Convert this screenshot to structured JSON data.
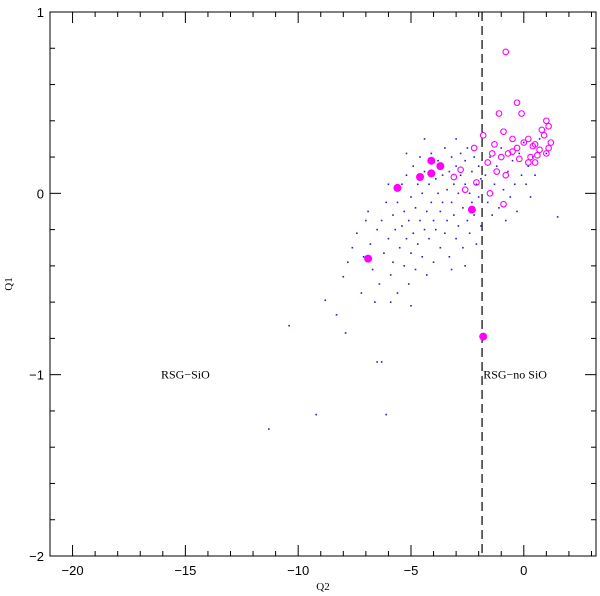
{
  "chart_data": {
    "type": "scatter",
    "xlabel": "Q2",
    "ylabel": "Q1",
    "xlim": [
      -21,
      3.2
    ],
    "ylim": [
      -2,
      1
    ],
    "x_ticks": [
      -20,
      -15,
      -10,
      -5,
      0
    ],
    "x_tick_labels": [
      "−20",
      "−15",
      "−10",
      "−5",
      "0"
    ],
    "y_ticks": [
      -2,
      -1,
      0,
      1
    ],
    "y_tick_labels": [
      "−2",
      "−1",
      "0",
      "1"
    ],
    "x_minor_step": 1,
    "y_minor_step": 0.2,
    "threshold_x": -1.85,
    "annotations": [
      {
        "text": "RSG−SiO",
        "x": -15.0,
        "y": -1.0
      },
      {
        "text": "RSG−no SiO",
        "x": -1.8,
        "y": -1.0
      }
    ],
    "colors": {
      "blue_points": "#1f1fd6",
      "magenta": "#ff00ff",
      "dashed_line": "#000000"
    },
    "series": [
      {
        "marker": "small-blue-dot",
        "points": [
          [
            -11.3,
            -1.3
          ],
          [
            -10.4,
            -0.73
          ],
          [
            -9.2,
            -1.22
          ],
          [
            -8.8,
            -0.59
          ],
          [
            -8.3,
            -0.67
          ],
          [
            -8.0,
            -0.46
          ],
          [
            -7.8,
            -0.38
          ],
          [
            -7.6,
            -0.3
          ],
          [
            -7.9,
            -0.77
          ],
          [
            -7.2,
            -0.55
          ],
          [
            -6.5,
            -0.93
          ],
          [
            -6.3,
            -0.93
          ],
          [
            -6.1,
            -1.22
          ],
          [
            -7.4,
            -0.22
          ],
          [
            -7.1,
            -0.35
          ],
          [
            -6.9,
            -0.1
          ],
          [
            -6.8,
            -0.28
          ],
          [
            -6.7,
            -0.42
          ],
          [
            -6.5,
            -0.2
          ],
          [
            -6.4,
            -0.5
          ],
          [
            -6.3,
            -0.15
          ],
          [
            -6.2,
            -0.33
          ],
          [
            -6.1,
            -0.05
          ],
          [
            -6.0,
            -0.25
          ],
          [
            -5.9,
            -0.45
          ],
          [
            -5.8,
            -0.12
          ],
          [
            -5.8,
            -0.38
          ],
          [
            -5.7,
            -0.2
          ],
          [
            -5.6,
            -0.55
          ],
          [
            -5.6,
            -0.05
          ],
          [
            -5.5,
            -0.3
          ],
          [
            -5.4,
            -0.18
          ],
          [
            -5.4,
            0.05
          ],
          [
            -5.3,
            -0.4
          ],
          [
            -5.3,
            -0.1
          ],
          [
            -5.2,
            -0.25
          ],
          [
            -5.2,
            0.1
          ],
          [
            -5.1,
            -0.5
          ],
          [
            -5.1,
            -0.15
          ],
          [
            -5.0,
            -0.02
          ],
          [
            -5.0,
            -0.33
          ],
          [
            -4.9,
            0.15
          ],
          [
            -4.9,
            -0.22
          ],
          [
            -4.8,
            -0.08
          ],
          [
            -4.8,
            -0.42
          ],
          [
            -4.7,
            0.05
          ],
          [
            -4.7,
            -0.28
          ],
          [
            -4.6,
            -0.15
          ],
          [
            -4.6,
            0.2
          ],
          [
            -4.5,
            -0.35
          ],
          [
            -4.5,
            0.0
          ],
          [
            -4.4,
            -0.2
          ],
          [
            -4.4,
            0.12
          ],
          [
            -4.3,
            -0.1
          ],
          [
            -4.3,
            -0.45
          ],
          [
            -4.2,
            0.05
          ],
          [
            -4.2,
            -0.25
          ],
          [
            -4.1,
            -0.05
          ],
          [
            -4.1,
            0.22
          ],
          [
            -4.0,
            -0.15
          ],
          [
            -4.0,
            -0.38
          ],
          [
            -3.9,
            0.08
          ],
          [
            -3.9,
            -0.2
          ],
          [
            -3.8,
            0.0
          ],
          [
            -3.8,
            0.18
          ],
          [
            -3.7,
            -0.1
          ],
          [
            -3.7,
            -0.3
          ],
          [
            -3.6,
            0.1
          ],
          [
            -3.6,
            -0.05
          ],
          [
            -3.5,
            -0.22
          ],
          [
            -3.5,
            0.25
          ],
          [
            -3.4,
            0.02
          ],
          [
            -3.4,
            -0.15
          ],
          [
            -3.3,
            0.12
          ],
          [
            -3.3,
            -0.35
          ],
          [
            -3.2,
            -0.05
          ],
          [
            -3.2,
            0.2
          ],
          [
            -3.1,
            -0.12
          ],
          [
            -3.1,
            0.05
          ],
          [
            -3.0,
            -0.25
          ],
          [
            -3.0,
            0.15
          ],
          [
            -2.9,
            0.0
          ],
          [
            -2.9,
            -0.18
          ],
          [
            -2.8,
            0.1
          ],
          [
            -2.8,
            0.22
          ],
          [
            -2.7,
            -0.08
          ],
          [
            -2.7,
            -0.3
          ],
          [
            -2.6,
            0.05
          ],
          [
            -2.6,
            0.18
          ],
          [
            -2.5,
            -0.15
          ],
          [
            -2.5,
            0.25
          ],
          [
            -2.4,
            0.0
          ],
          [
            -2.4,
            -0.22
          ],
          [
            -2.3,
            0.12
          ],
          [
            -2.3,
            -0.05
          ],
          [
            -2.2,
            0.2
          ],
          [
            -2.2,
            -0.12
          ],
          [
            -2.1,
            0.05
          ],
          [
            -2.1,
            -0.28
          ],
          [
            -2.0,
            0.15
          ],
          [
            -2.0,
            -0.02
          ],
          [
            -1.9,
            0.08
          ],
          [
            -1.9,
            -0.18
          ],
          [
            -1.7,
            0.1
          ],
          [
            -1.6,
            -0.05
          ],
          [
            -1.5,
            0.2
          ],
          [
            -1.4,
            -0.12
          ],
          [
            -1.3,
            0.05
          ],
          [
            -1.2,
            0.15
          ],
          [
            -1.1,
            -0.08
          ],
          [
            -1.0,
            0.25
          ],
          [
            -0.9,
            0.02
          ],
          [
            -0.8,
            -0.15
          ],
          [
            -0.7,
            0.12
          ],
          [
            -0.6,
            -0.02
          ],
          [
            -0.5,
            0.18
          ],
          [
            -0.4,
            0.05
          ],
          [
            -0.3,
            -0.1
          ],
          [
            -0.2,
            0.22
          ],
          [
            -0.1,
            0.1
          ],
          [
            0.0,
            0.28
          ],
          [
            0.1,
            0.05
          ],
          [
            0.2,
            0.15
          ],
          [
            0.3,
            -0.02
          ],
          [
            0.4,
            0.2
          ],
          [
            0.5,
            0.1
          ],
          [
            0.7,
            0.3
          ],
          [
            1.0,
            0.22
          ],
          [
            1.5,
            -0.13
          ],
          [
            -6.6,
            -0.6
          ],
          [
            -5.9,
            -0.6
          ],
          [
            -5.0,
            -0.62
          ],
          [
            -3.2,
            -0.42
          ],
          [
            -2.6,
            -0.4
          ],
          [
            -7.0,
            -0.15
          ],
          [
            -6.0,
            0.05
          ],
          [
            -5.2,
            0.22
          ],
          [
            -4.4,
            0.3
          ],
          [
            -3.0,
            0.3
          ]
        ]
      },
      {
        "marker": "filled-magenta-circle",
        "points": [
          [
            -6.9,
            -0.36
          ],
          [
            -5.6,
            0.03
          ],
          [
            -4.6,
            0.09
          ],
          [
            -4.1,
            0.11
          ],
          [
            -4.1,
            0.18
          ],
          [
            -3.7,
            0.15
          ],
          [
            -2.3,
            -0.09
          ],
          [
            -1.8,
            -0.79
          ]
        ]
      },
      {
        "marker": "open-magenta-circle",
        "points": [
          [
            -0.8,
            0.78
          ],
          [
            -0.3,
            0.5
          ],
          [
            -0.1,
            0.44
          ],
          [
            -1.1,
            0.44
          ],
          [
            -0.9,
            0.34
          ],
          [
            -1.8,
            0.32
          ],
          [
            -0.5,
            0.3
          ],
          [
            -2.2,
            0.25
          ],
          [
            -1.3,
            0.27
          ],
          [
            -0.7,
            0.22
          ],
          [
            -0.3,
            0.25
          ],
          [
            0.0,
            0.28
          ],
          [
            0.2,
            0.3
          ],
          [
            0.5,
            0.27
          ],
          [
            0.8,
            0.35
          ],
          [
            1.0,
            0.4
          ],
          [
            1.1,
            0.37
          ],
          [
            0.9,
            0.32
          ],
          [
            0.7,
            0.24
          ],
          [
            1.0,
            0.22
          ],
          [
            1.2,
            0.28
          ],
          [
            0.3,
            0.2
          ],
          [
            0.5,
            0.17
          ],
          [
            0.6,
            0.21
          ],
          [
            0.2,
            0.17
          ],
          [
            -0.2,
            0.19
          ],
          [
            -1.6,
            0.17
          ],
          [
            -1.0,
            0.2
          ],
          [
            -1.4,
            0.22
          ],
          [
            -0.5,
            0.23
          ],
          [
            0.4,
            0.26
          ],
          [
            1.1,
            0.25
          ],
          [
            -2.1,
            0.06
          ],
          [
            -1.5,
            0.0
          ],
          [
            -0.9,
            -0.06
          ],
          [
            -2.8,
            0.13
          ],
          [
            -3.1,
            0.09
          ],
          [
            -1.2,
            0.12
          ],
          [
            -2.6,
            0.02
          ],
          [
            -0.8,
            0.1
          ]
        ]
      }
    ]
  }
}
